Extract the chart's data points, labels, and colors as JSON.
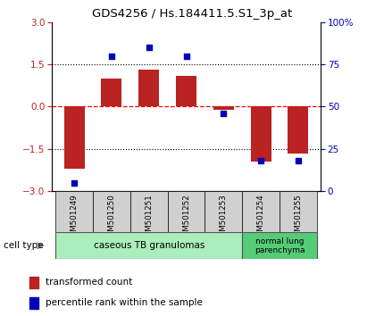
{
  "title": "GDS4256 / Hs.184411.5.S1_3p_at",
  "samples": [
    "GSM501249",
    "GSM501250",
    "GSM501251",
    "GSM501252",
    "GSM501253",
    "GSM501254",
    "GSM501255"
  ],
  "red_values": [
    -2.2,
    1.0,
    1.3,
    1.1,
    -0.1,
    -1.95,
    -1.65
  ],
  "blue_percentiles": [
    5.0,
    80.0,
    85.0,
    80.0,
    46.0,
    18.0,
    18.0
  ],
  "ylim_left": [
    -3,
    3
  ],
  "ylim_right": [
    0,
    100
  ],
  "yticks_left": [
    -3,
    -1.5,
    0,
    1.5,
    3
  ],
  "yticks_right": [
    0,
    25,
    50,
    75,
    100
  ],
  "ytick_labels_right": [
    "0",
    "25",
    "50",
    "75",
    "100%"
  ],
  "red_color": "#BB2222",
  "blue_color": "#0000BB",
  "dashed_red_color": "#FF0000",
  "group1_label": "caseous TB granulomas",
  "group2_label": "normal lung\nparenchyma",
  "group1_color": "#AAEEBB",
  "group2_color": "#55CC77",
  "legend_red_label": "transformed count",
  "legend_blue_label": "percentile rank within the sample",
  "cell_type_label": "cell type",
  "bar_width": 0.55,
  "title_fontsize": 9.5,
  "label_gray": "#D0D0D0"
}
